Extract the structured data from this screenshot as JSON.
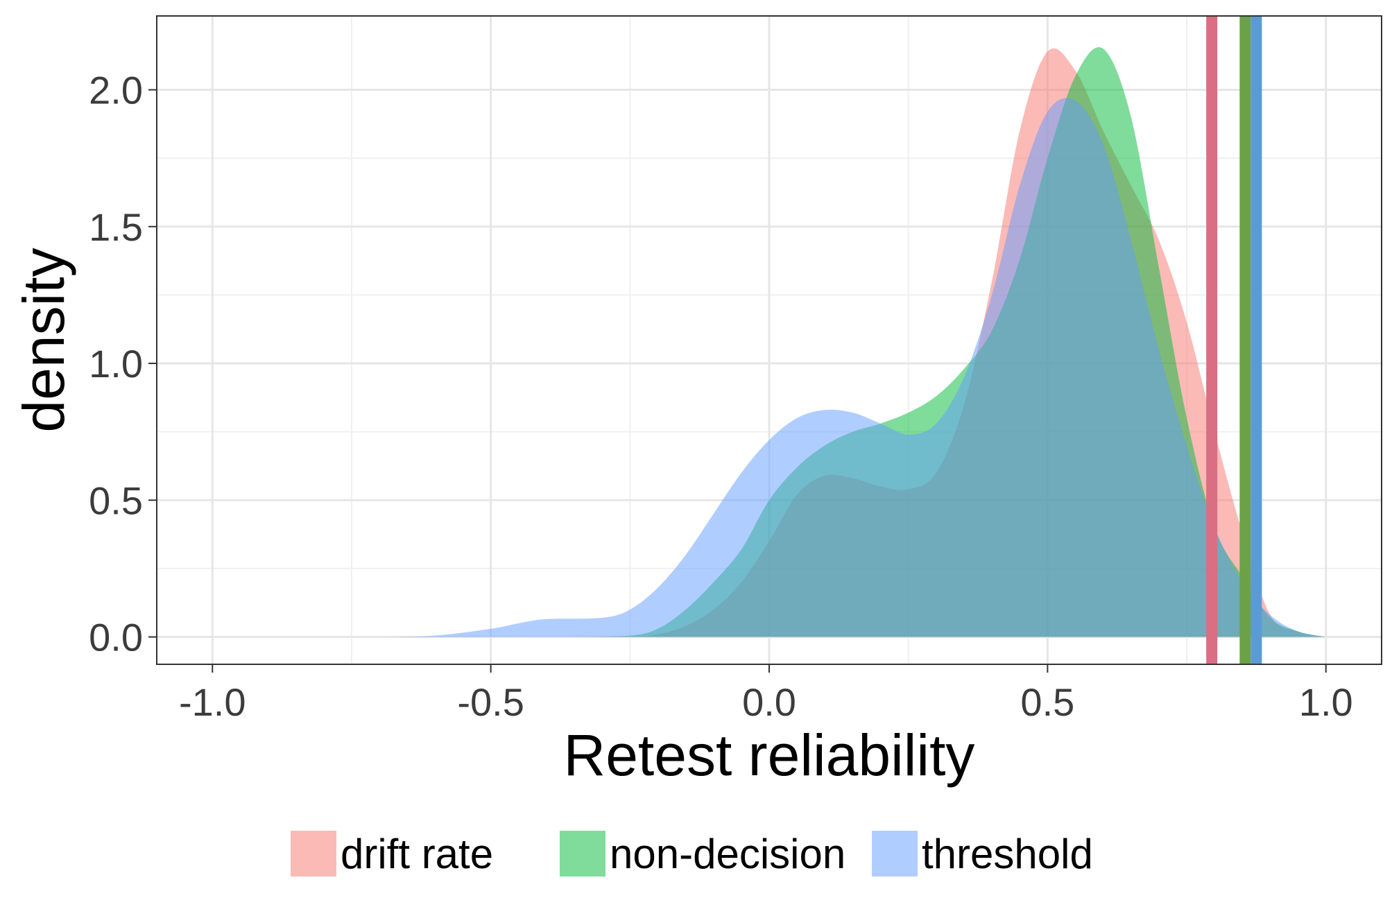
{
  "chart_data": {
    "type": "area",
    "xlabel": "Retest reliability",
    "ylabel": "density",
    "xlim": [
      -1.1,
      1.1
    ],
    "ylim": [
      -0.1,
      2.27
    ],
    "x_ticks": [
      {
        "value": -1.0,
        "label": "-1.0"
      },
      {
        "value": -0.5,
        "label": "-0.5"
      },
      {
        "value": 0.0,
        "label": "0.0"
      },
      {
        "value": 0.5,
        "label": "0.5"
      },
      {
        "value": 1.0,
        "label": "1.0"
      }
    ],
    "y_ticks": [
      {
        "value": 0.0,
        "label": "0.0"
      },
      {
        "value": 0.5,
        "label": "0.5"
      },
      {
        "value": 1.0,
        "label": "1.0"
      },
      {
        "value": 1.5,
        "label": "1.5"
      },
      {
        "value": 2.0,
        "label": "2.0"
      }
    ],
    "grid": true,
    "legend_position": "bottom",
    "series": [
      {
        "name": "drift rate",
        "fill": "#F8766D",
        "line_color": "#DA6E82",
        "vline": 0.795,
        "points": [
          [
            -0.35,
            0.0
          ],
          [
            -0.25,
            0.002
          ],
          [
            -0.2,
            0.01
          ],
          [
            -0.15,
            0.04
          ],
          [
            -0.1,
            0.1
          ],
          [
            -0.05,
            0.2
          ],
          [
            0.0,
            0.35
          ],
          [
            0.05,
            0.52
          ],
          [
            0.1,
            0.59
          ],
          [
            0.15,
            0.58
          ],
          [
            0.2,
            0.55
          ],
          [
            0.25,
            0.54
          ],
          [
            0.3,
            0.6
          ],
          [
            0.35,
            0.85
          ],
          [
            0.4,
            1.3
          ],
          [
            0.45,
            1.85
          ],
          [
            0.5,
            2.14
          ],
          [
            0.55,
            2.07
          ],
          [
            0.6,
            1.85
          ],
          [
            0.65,
            1.65
          ],
          [
            0.7,
            1.45
          ],
          [
            0.75,
            1.15
          ],
          [
            0.8,
            0.75
          ],
          [
            0.85,
            0.38
          ],
          [
            0.9,
            0.08
          ],
          [
            0.95,
            0.02
          ],
          [
            1.0,
            0.0
          ]
        ]
      },
      {
        "name": "non-decision",
        "fill": "#00BA38",
        "line_color": "#6BA248",
        "vline": 0.855,
        "points": [
          [
            -0.35,
            0.0
          ],
          [
            -0.25,
            0.005
          ],
          [
            -0.2,
            0.03
          ],
          [
            -0.15,
            0.1
          ],
          [
            -0.1,
            0.2
          ],
          [
            -0.05,
            0.32
          ],
          [
            0.0,
            0.5
          ],
          [
            0.05,
            0.62
          ],
          [
            0.1,
            0.7
          ],
          [
            0.15,
            0.75
          ],
          [
            0.2,
            0.78
          ],
          [
            0.25,
            0.82
          ],
          [
            0.3,
            0.88
          ],
          [
            0.35,
            0.98
          ],
          [
            0.4,
            1.12
          ],
          [
            0.45,
            1.38
          ],
          [
            0.5,
            1.75
          ],
          [
            0.55,
            2.05
          ],
          [
            0.6,
            2.15
          ],
          [
            0.65,
            1.9
          ],
          [
            0.7,
            1.35
          ],
          [
            0.75,
            0.8
          ],
          [
            0.8,
            0.4
          ],
          [
            0.85,
            0.22
          ],
          [
            0.9,
            0.07
          ],
          [
            0.95,
            0.02
          ],
          [
            1.0,
            0.0
          ]
        ]
      },
      {
        "name": "threshold",
        "fill": "#619CFF",
        "line_color": "#5B9BD5",
        "vline": 0.875,
        "points": [
          [
            -0.7,
            0.0
          ],
          [
            -0.6,
            0.005
          ],
          [
            -0.5,
            0.03
          ],
          [
            -0.45,
            0.05
          ],
          [
            -0.4,
            0.065
          ],
          [
            -0.3,
            0.07
          ],
          [
            -0.25,
            0.1
          ],
          [
            -0.2,
            0.18
          ],
          [
            -0.15,
            0.3
          ],
          [
            -0.1,
            0.45
          ],
          [
            -0.05,
            0.6
          ],
          [
            0.0,
            0.72
          ],
          [
            0.05,
            0.8
          ],
          [
            0.1,
            0.83
          ],
          [
            0.15,
            0.82
          ],
          [
            0.2,
            0.78
          ],
          [
            0.25,
            0.74
          ],
          [
            0.3,
            0.78
          ],
          [
            0.35,
            0.95
          ],
          [
            0.4,
            1.25
          ],
          [
            0.45,
            1.65
          ],
          [
            0.5,
            1.92
          ],
          [
            0.55,
            1.96
          ],
          [
            0.6,
            1.8
          ],
          [
            0.65,
            1.45
          ],
          [
            0.7,
            1.05
          ],
          [
            0.75,
            0.7
          ],
          [
            0.8,
            0.4
          ],
          [
            0.85,
            0.2
          ],
          [
            0.9,
            0.08
          ],
          [
            0.95,
            0.02
          ],
          [
            1.0,
            0.0
          ]
        ]
      }
    ]
  }
}
